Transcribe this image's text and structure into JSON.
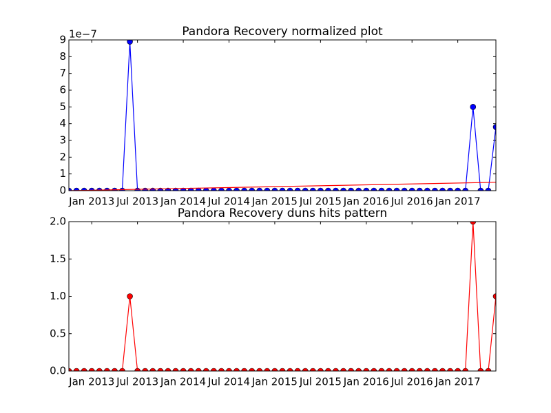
{
  "chart_data": [
    {
      "type": "line",
      "title": "Pandora Recovery normalized plot",
      "offset_label": "1e−7",
      "x": [
        "2012-10",
        "2012-11",
        "2012-12",
        "2013-01",
        "2013-02",
        "2013-03",
        "2013-04",
        "2013-05",
        "2013-06",
        "2013-07",
        "2013-08",
        "2013-09",
        "2013-10",
        "2013-11",
        "2013-12",
        "2014-01",
        "2014-02",
        "2014-03",
        "2014-04",
        "2014-05",
        "2014-06",
        "2014-07",
        "2014-08",
        "2014-09",
        "2014-10",
        "2014-11",
        "2014-12",
        "2015-01",
        "2015-02",
        "2015-03",
        "2015-04",
        "2015-05",
        "2015-06",
        "2015-07",
        "2015-08",
        "2015-09",
        "2015-10",
        "2015-11",
        "2015-12",
        "2016-01",
        "2016-02",
        "2016-03",
        "2016-04",
        "2016-05",
        "2016-06",
        "2016-07",
        "2016-08",
        "2016-09",
        "2016-10",
        "2016-11",
        "2016-12",
        "2017-01",
        "2017-02",
        "2017-03",
        "2017-04",
        "2017-05",
        "2017-06"
      ],
      "series": [
        {
          "color": "#0000ff",
          "marker": true,
          "values": [
            0,
            0,
            0,
            0,
            0,
            0,
            0,
            0,
            8.9,
            0,
            0,
            0,
            0,
            0,
            0,
            0,
            0,
            0,
            0,
            0,
            0,
            0,
            0,
            0,
            0,
            0,
            0,
            0,
            0,
            0,
            0,
            0,
            0,
            0,
            0,
            0,
            0,
            0,
            0,
            0,
            0,
            0,
            0,
            0,
            0,
            0,
            0,
            0,
            0,
            0,
            0,
            0,
            0,
            5,
            0,
            0,
            3.8
          ]
        },
        {
          "color": "#ff0000",
          "marker": false,
          "x": [
            "2012-10",
            "2017-06"
          ],
          "values": [
            0,
            0.5
          ]
        }
      ],
      "xlim": [
        "2012-10",
        "2017-06"
      ],
      "xticks": [
        {
          "value": "2013-01",
          "label": "Jan 2013"
        },
        {
          "value": "2013-07",
          "label": "Jul 2013"
        },
        {
          "value": "2014-01",
          "label": "Jan 2014"
        },
        {
          "value": "2014-07",
          "label": "Jul 2014"
        },
        {
          "value": "2015-01",
          "label": "Jan 2015"
        },
        {
          "value": "2015-07",
          "label": "Jul 2015"
        },
        {
          "value": "2016-01",
          "label": "Jan 2016"
        },
        {
          "value": "2016-07",
          "label": "Jul 2016"
        },
        {
          "value": "2017-01",
          "label": "Jan 2017"
        }
      ],
      "ylim": [
        0,
        9
      ],
      "yticks": [
        0,
        1,
        2,
        3,
        4,
        5,
        6,
        7,
        8,
        9
      ]
    },
    {
      "type": "line",
      "title": "Pandora Recovery duns hits pattern",
      "x": [
        "2012-10",
        "2012-11",
        "2012-12",
        "2013-01",
        "2013-02",
        "2013-03",
        "2013-04",
        "2013-05",
        "2013-06",
        "2013-07",
        "2013-08",
        "2013-09",
        "2013-10",
        "2013-11",
        "2013-12",
        "2014-01",
        "2014-02",
        "2014-03",
        "2014-04",
        "2014-05",
        "2014-06",
        "2014-07",
        "2014-08",
        "2014-09",
        "2014-10",
        "2014-11",
        "2014-12",
        "2015-01",
        "2015-02",
        "2015-03",
        "2015-04",
        "2015-05",
        "2015-06",
        "2015-07",
        "2015-08",
        "2015-09",
        "2015-10",
        "2015-11",
        "2015-12",
        "2016-01",
        "2016-02",
        "2016-03",
        "2016-04",
        "2016-05",
        "2016-06",
        "2016-07",
        "2016-08",
        "2016-09",
        "2016-10",
        "2016-11",
        "2016-12",
        "2017-01",
        "2017-02",
        "2017-03",
        "2017-04",
        "2017-05",
        "2017-06"
      ],
      "series": [
        {
          "color": "#ff0000",
          "marker": true,
          "values": [
            0,
            0,
            0,
            0,
            0,
            0,
            0,
            0,
            1,
            0,
            0,
            0,
            0,
            0,
            0,
            0,
            0,
            0,
            0,
            0,
            0,
            0,
            0,
            0,
            0,
            0,
            0,
            0,
            0,
            0,
            0,
            0,
            0,
            0,
            0,
            0,
            0,
            0,
            0,
            0,
            0,
            0,
            0,
            0,
            0,
            0,
            0,
            0,
            0,
            0,
            0,
            0,
            0,
            2,
            0,
            0,
            1
          ]
        }
      ],
      "xlim": [
        "2012-10",
        "2017-06"
      ],
      "xticks": [
        {
          "value": "2013-01",
          "label": "Jan 2013"
        },
        {
          "value": "2013-07",
          "label": "Jul 2013"
        },
        {
          "value": "2014-01",
          "label": "Jan 2014"
        },
        {
          "value": "2014-07",
          "label": "Jul 2014"
        },
        {
          "value": "2015-01",
          "label": "Jan 2015"
        },
        {
          "value": "2015-07",
          "label": "Jul 2015"
        },
        {
          "value": "2016-01",
          "label": "Jan 2016"
        },
        {
          "value": "2016-07",
          "label": "Jul 2016"
        },
        {
          "value": "2017-01",
          "label": "Jan 2017"
        }
      ],
      "ylim": [
        0,
        2
      ],
      "yticks": [
        {
          "value": 0,
          "label": "0.0"
        },
        {
          "value": 0.5,
          "label": "0.5"
        },
        {
          "value": 1,
          "label": "1.0"
        },
        {
          "value": 1.5,
          "label": "1.5"
        },
        {
          "value": 2,
          "label": "2.0"
        }
      ]
    }
  ]
}
